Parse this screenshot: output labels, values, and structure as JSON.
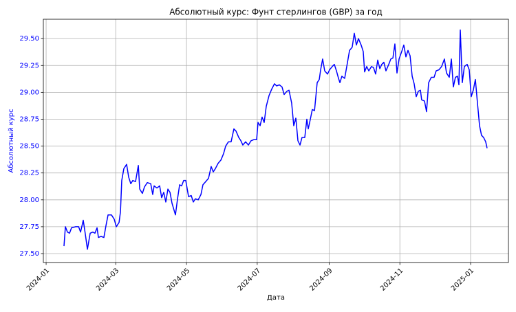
{
  "chart_data": {
    "type": "line",
    "title": "Абсолютный курс: Фунт стерлингов (GBP) за год",
    "xlabel": "Дата",
    "ylabel": "Абсолютный курс",
    "color": "#0000ff",
    "axis_label_color": "#0000ff",
    "grid": true,
    "xlim": [
      -2.4,
      398.6
    ],
    "ylim": [
      27.417,
      29.68
    ],
    "xticks": [
      {
        "value": 0,
        "label": "2024-01"
      },
      {
        "value": 60,
        "label": "2024-03"
      },
      {
        "value": 121,
        "label": "2024-05"
      },
      {
        "value": 182,
        "label": "2024-07"
      },
      {
        "value": 244,
        "label": "2024-09"
      },
      {
        "value": 305,
        "label": "2024-11"
      },
      {
        "value": 366,
        "label": "2025-01"
      }
    ],
    "yticks": [
      {
        "value": 27.5,
        "label": "27.50"
      },
      27.75,
      {
        "value": 28,
        "label": "28.00"
      },
      28.25,
      {
        "value": 28.5,
        "label": "28.50"
      },
      28.75,
      {
        "value": 29,
        "label": "29.00"
      },
      29.25,
      {
        "value": 29.5,
        "label": "29.50"
      }
    ],
    "x": [
      15.4,
      16.6,
      18.4,
      20.2,
      21.9,
      25.5,
      28.0,
      29.7,
      32.0,
      33.8,
      35.6,
      38.0,
      40.3,
      42.1,
      43.9,
      45.1,
      47.4,
      49.8,
      51.6,
      53.4,
      56.3,
      58.7,
      60.5,
      62.9,
      64.1,
      65.2,
      67.0,
      69.4,
      71.2,
      73.0,
      74.7,
      77.1,
      79.5,
      80.7,
      83.0,
      84.8,
      87.2,
      90.2,
      91.9,
      93.1,
      95.5,
      97.9,
      99.6,
      101.4,
      103.2,
      105.0,
      106.8,
      108.5,
      111.5,
      113.3,
      115.1,
      116.8,
      118.6,
      120.4,
      122.8,
      125.1,
      126.9,
      128.7,
      131.1,
      133.5,
      135.2,
      137.6,
      140.0,
      142.3,
      144.1,
      145.9,
      148.3,
      150.7,
      153.0,
      154.8,
      157.2,
      159.5,
      161.9,
      163.7,
      166.1,
      167.9,
      169.6,
      172.0,
      174.4,
      176.7,
      179.1,
      181.5,
      182.7,
      184.5,
      186.2,
      188.0,
      189.8,
      192.2,
      194.5,
      196.9,
      198.7,
      201.1,
      203.4,
      205.2,
      207.6,
      209.4,
      211.7,
      213.5,
      215.3,
      217.1,
      218.9,
      220.6,
      223.0,
      224.8,
      226.0,
      227.8,
      229.5,
      231.4,
      233.7,
      235.5,
      236.7,
      238.4,
      240.2,
      242.6,
      244.4,
      246.7,
      248.5,
      250.3,
      252.1,
      253.3,
      255.0,
      257.4,
      259.2,
      261.6,
      263.9,
      265.7,
      267.5,
      269.3,
      271.6,
      273.4,
      274.6,
      276.4,
      278.2,
      280.5,
      282.3,
      284.1,
      285.9,
      287.7,
      289.4,
      291.2,
      293.0,
      295.4,
      297.2,
      299.0,
      300.7,
      302.5,
      304.3,
      306.6,
      308.4,
      310.2,
      312.0,
      313.8,
      315.6,
      317.3,
      319.1,
      320.9,
      322.7,
      323.8,
      326.2,
      328.0,
      329.8,
      332.1,
      334.5,
      336.3,
      338.7,
      341.0,
      343.4,
      345.2,
      347.6,
      349.4,
      351.1,
      352.9,
      354.7,
      355.9,
      357.1,
      358.8,
      360.6,
      363.0,
      364.8,
      366.5,
      368.3,
      370.1,
      371.9,
      373.7,
      375.4,
      377.2,
      379.0,
      380.2
    ],
    "values": [
      27.57,
      27.75,
      27.7,
      27.69,
      27.74,
      27.75,
      27.75,
      27.7,
      27.81,
      27.68,
      27.54,
      27.69,
      27.7,
      27.69,
      27.74,
      27.65,
      27.66,
      27.65,
      27.76,
      27.86,
      27.86,
      27.82,
      27.75,
      27.79,
      27.89,
      28.18,
      28.29,
      28.33,
      28.21,
      28.15,
      28.18,
      28.17,
      28.32,
      28.1,
      28.06,
      28.12,
      28.16,
      28.15,
      28.05,
      28.13,
      28.11,
      28.13,
      28.02,
      28.07,
      27.98,
      28.1,
      28.07,
      27.97,
      27.86,
      28.01,
      28.14,
      28.13,
      28.18,
      28.18,
      28.03,
      28.04,
      27.98,
      28.01,
      28.0,
      28.05,
      28.14,
      28.17,
      28.2,
      28.31,
      28.26,
      28.29,
      28.34,
      28.37,
      28.43,
      28.5,
      28.54,
      28.54,
      28.66,
      28.64,
      28.58,
      28.55,
      28.51,
      28.54,
      28.51,
      28.55,
      28.56,
      28.56,
      28.72,
      28.69,
      28.77,
      28.72,
      28.87,
      28.97,
      29.03,
      29.08,
      29.06,
      29.07,
      29.05,
      28.98,
      29.01,
      29.02,
      28.9,
      28.69,
      28.76,
      28.55,
      28.51,
      28.58,
      28.58,
      28.75,
      28.66,
      28.75,
      28.84,
      28.83,
      29.09,
      29.12,
      29.21,
      29.31,
      29.2,
      29.17,
      29.21,
      29.24,
      29.26,
      29.2,
      29.13,
      29.09,
      29.15,
      29.13,
      29.24,
      29.39,
      29.42,
      29.55,
      29.44,
      29.5,
      29.44,
      29.38,
      29.19,
      29.24,
      29.2,
      29.24,
      29.23,
      29.17,
      29.3,
      29.22,
      29.26,
      29.28,
      29.2,
      29.26,
      29.31,
      29.32,
      29.45,
      29.18,
      29.31,
      29.38,
      29.44,
      29.33,
      29.39,
      29.34,
      29.15,
      29.08,
      28.96,
      29.01,
      29.02,
      28.93,
      28.92,
      28.82,
      29.09,
      29.14,
      29.14,
      29.2,
      29.21,
      29.24,
      29.31,
      29.18,
      29.14,
      29.31,
      29.05,
      29.14,
      29.15,
      29.07,
      29.58,
      29.09,
      29.24,
      29.26,
      29.21,
      28.96,
      29.02,
      29.12,
      28.9,
      28.69,
      28.6,
      28.58,
      28.54,
      28.48
    ]
  }
}
